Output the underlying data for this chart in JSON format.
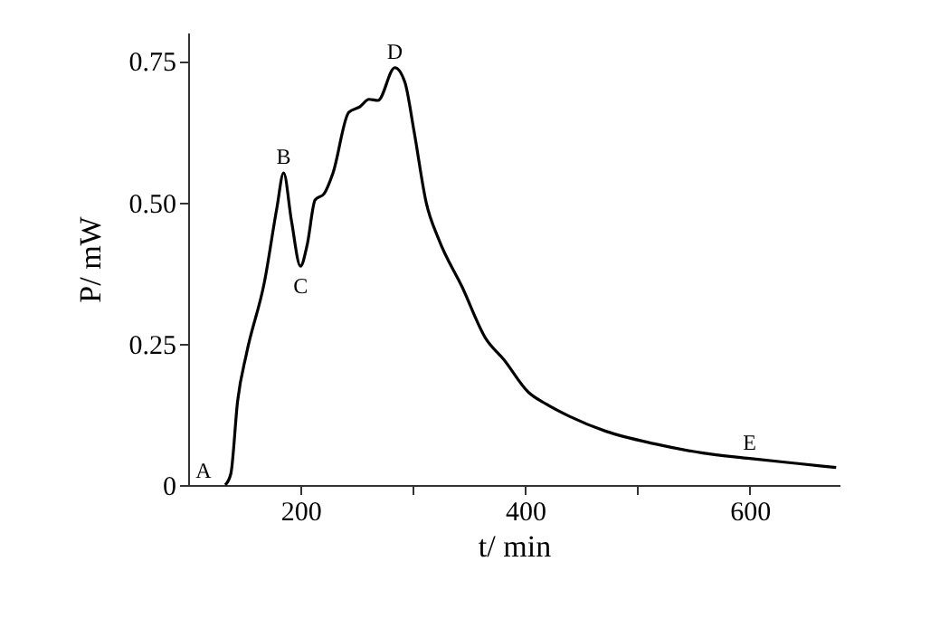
{
  "chart_data": {
    "type": "line",
    "xlabel": "t/ min",
    "ylabel": "P/ mW",
    "x": [
      133,
      138,
      144,
      152,
      168,
      179,
      185,
      192,
      200,
      206,
      213,
      221,
      229,
      243,
      253,
      261,
      269,
      284,
      293,
      301,
      312,
      323,
      344,
      365,
      381,
      403,
      419,
      440,
      472,
      515,
      557,
      600,
      643,
      677
    ],
    "series": [
      {
        "color": "#000000",
        "values": [
          0,
          0.02,
          0.148,
          0.233,
          0.36,
          0.49,
          0.552,
          0.467,
          0.387,
          0.425,
          0.504,
          0.515,
          0.552,
          0.659,
          0.669,
          0.682,
          0.68,
          0.738,
          0.712,
          0.627,
          0.499,
          0.435,
          0.35,
          0.259,
          0.222,
          0.164,
          0.143,
          0.121,
          0.095,
          0.073,
          0.057,
          0.047,
          0.038,
          0.031
        ]
      }
    ],
    "xlim": [
      100,
      680
    ],
    "ylim": [
      0,
      0.8
    ],
    "xticks": [
      200,
      {
        "value": 300,
        "label": null
      },
      400,
      {
        "value": 500,
        "label": null
      },
      600
    ],
    "yticks": [
      {
        "value": 0,
        "label": "0"
      },
      {
        "value": 0.25,
        "label": "0.25"
      },
      {
        "value": 0.5,
        "label": "0.50"
      },
      {
        "value": 0.75,
        "label": "0.75"
      }
    ],
    "annotations": [
      {
        "text": "A",
        "x": 133,
        "y": 0
      },
      {
        "text": "B",
        "x": 185,
        "y": 0.552
      },
      {
        "text": "C",
        "x": 200,
        "y": 0.387
      },
      {
        "text": "D",
        "x": 284,
        "y": 0.738
      },
      {
        "text": "E",
        "x": 600,
        "y": 0.047
      }
    ],
    "grid": false,
    "legend": false,
    "marker": "none",
    "line_style": "solid"
  }
}
